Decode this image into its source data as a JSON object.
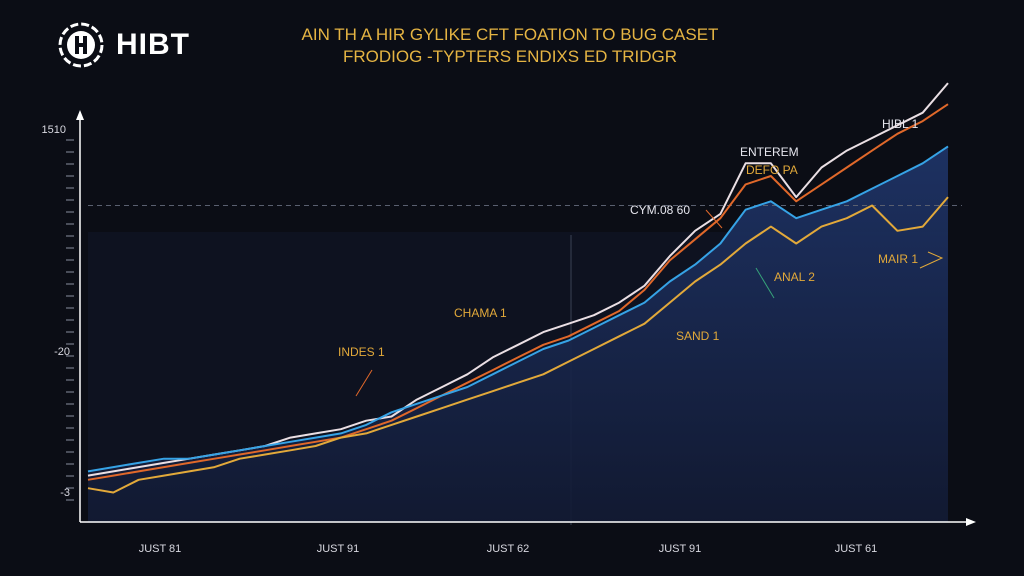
{
  "brand": {
    "name": "HIBT"
  },
  "titles": {
    "line1": "AIN TH A HIR GYLIKE CFT FOATION TO BUG CASET",
    "line2": "FRODIOG -TYPTERS ENDIXS ED TRIDGR"
  },
  "y_tick_labels": [
    "1510",
    "-20",
    "-3"
  ],
  "x_tick_labels": [
    "JUST 81",
    "JUST 91",
    "JUST 62",
    "JUST 91",
    "JUST 61"
  ],
  "annotations": {
    "enterem": "ENTEREM",
    "defo": "DEFO PA",
    "hibl": "HIBL 1",
    "cym": "CYM.08 60",
    "mair": "MAIR 1",
    "anal": "ANAL 2",
    "chama": "CHAMA 1",
    "sand": "SAND 1",
    "indes": "INDES 1"
  },
  "colors": {
    "background": "#0b0d15",
    "white_series": "#eadfe4",
    "orange_series": "#e0682a",
    "blue_series": "#36a3e6",
    "yellow_series": "#e2a93a",
    "area_fill": "#1a2a52",
    "title": "#e5b443"
  },
  "chart_data": {
    "type": "line",
    "title": "AIN TH A HIR GYLIKE CFT FOATION TO BUG CASET FRODIOG -TYPTERS ENDIXS ED TRIDGR",
    "xlabel": "",
    "ylabel": "",
    "x_ticks": [
      "JUST 81",
      "JUST 91",
      "JUST 62",
      "JUST 91",
      "JUST 61"
    ],
    "x": [
      0,
      5,
      10,
      15,
      20,
      25,
      30,
      35,
      40,
      45,
      50,
      55,
      60,
      65,
      70,
      75,
      80,
      85,
      90,
      95,
      100,
      105,
      110,
      115,
      120,
      125,
      130,
      135,
      140,
      145,
      150,
      155,
      160,
      165,
      170
    ],
    "xlim": [
      0,
      170
    ],
    "ylim": [
      0,
      100
    ],
    "area_under_series": "blue",
    "reference_line": 75,
    "series": [
      {
        "key": "white",
        "values": [
          11,
          12,
          13,
          14,
          15,
          16,
          17,
          18,
          20,
          21,
          22,
          24,
          25,
          29,
          32,
          35,
          39,
          42,
          45,
          47,
          49,
          52,
          56,
          63,
          69,
          73,
          85,
          85,
          77,
          84,
          88,
          91,
          94,
          97,
          104
        ]
      },
      {
        "key": "orange",
        "values": [
          10,
          11,
          12,
          13,
          14,
          15,
          16,
          17,
          18,
          19,
          20,
          22,
          24,
          27,
          30,
          33,
          36,
          39,
          42,
          44,
          47,
          50,
          55,
          62,
          67,
          72,
          80,
          82,
          76,
          80,
          84,
          88,
          92,
          95,
          99
        ]
      },
      {
        "key": "blue",
        "values": [
          12,
          13,
          14,
          15,
          15,
          16,
          17,
          18,
          19,
          20,
          21,
          23,
          26,
          28,
          30,
          32,
          35,
          38,
          41,
          43,
          46,
          49,
          52,
          57,
          61,
          66,
          74,
          76,
          72,
          74,
          76,
          79,
          82,
          85,
          89
        ]
      },
      {
        "key": "yellow",
        "values": [
          8,
          7,
          10,
          11,
          12,
          13,
          15,
          16,
          17,
          18,
          20,
          21,
          23,
          25,
          27,
          29,
          31,
          33,
          35,
          38,
          41,
          44,
          47,
          52,
          57,
          61,
          66,
          70,
          66,
          70,
          72,
          75,
          69,
          70,
          77
        ]
      }
    ]
  }
}
